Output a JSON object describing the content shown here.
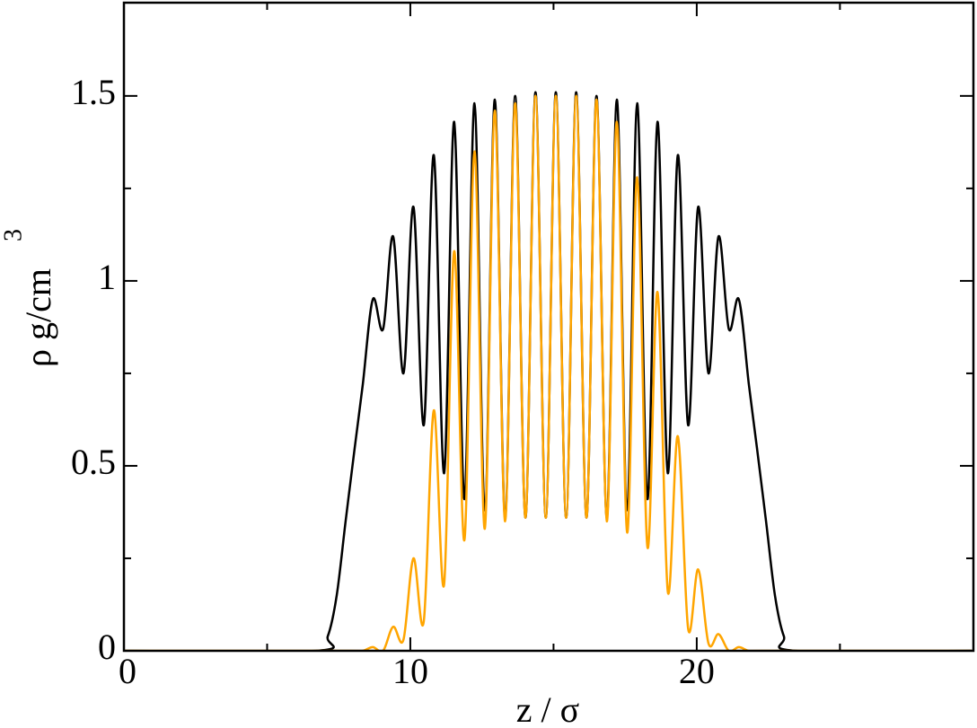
{
  "chart_data": {
    "type": "line",
    "xlabel": "z / σ",
    "ylabel": "ρ g/cm",
    "ylabel_superscript": "3",
    "xlim": [
      0,
      29.66
    ],
    "ylim": [
      0,
      1.752
    ],
    "xticks": [
      0,
      10,
      20
    ],
    "x_minor_ticks": [
      5,
      15,
      25
    ],
    "yticks": [
      0,
      0.5,
      1,
      1.5
    ],
    "y_minor_ticks": [
      0.25,
      0.75,
      1.25
    ],
    "series": [
      {
        "color": "#000000",
        "x": [
          0,
          6.7,
          7.12,
          7.43,
          7.74,
          8.06,
          8.34,
          8.69,
          9.05,
          9.4,
          9.76,
          10.11,
          10.47,
          10.82,
          11.18,
          11.53,
          11.89,
          12.24,
          12.6,
          12.95,
          13.31,
          13.66,
          14.02,
          14.37,
          14.73,
          15.08,
          15.44,
          15.79,
          16.15,
          16.5,
          16.86,
          17.21,
          17.57,
          17.92,
          18.28,
          18.63,
          18.99,
          19.34,
          19.7,
          20.05,
          20.41,
          20.76,
          21.12,
          21.47,
          21.82,
          22.1,
          22.42,
          22.73,
          23.04,
          23.46,
          29.6
        ],
        "values": [
          0,
          0,
          0.04,
          0.15,
          0.35,
          0.55,
          0.72,
          0.95,
          0.87,
          1.12,
          0.75,
          1.2,
          0.61,
          1.34,
          0.48,
          1.43,
          0.41,
          1.48,
          0.38,
          1.49,
          0.36,
          1.5,
          0.36,
          1.51,
          0.36,
          1.51,
          0.36,
          1.51,
          0.36,
          1.5,
          0.36,
          1.49,
          0.38,
          1.48,
          0.41,
          1.43,
          0.48,
          1.34,
          0.61,
          1.2,
          0.75,
          1.12,
          0.87,
          0.95,
          0.72,
          0.55,
          0.35,
          0.15,
          0.04,
          0,
          0
        ]
      },
      {
        "color": "#ffa500",
        "x": [
          0,
          7.9,
          8.34,
          8.69,
          9.05,
          9.4,
          9.76,
          10.11,
          10.47,
          10.82,
          11.18,
          11.53,
          11.89,
          12.24,
          12.6,
          12.95,
          13.31,
          13.66,
          14.02,
          14.37,
          14.73,
          15.08,
          15.44,
          15.79,
          16.15,
          16.5,
          16.86,
          17.21,
          17.57,
          17.92,
          18.28,
          18.63,
          18.99,
          19.34,
          19.7,
          20.05,
          20.41,
          20.76,
          21.12,
          21.47,
          21.82,
          22.3,
          29.6
        ],
        "values": [
          0,
          0,
          0,
          0.01,
          0,
          0.065,
          0.03,
          0.25,
          0.08,
          0.65,
          0.18,
          1.08,
          0.3,
          1.35,
          0.33,
          1.46,
          0.35,
          1.48,
          0.36,
          1.5,
          0.36,
          1.5,
          0.36,
          1.5,
          0.36,
          1.49,
          0.35,
          1.43,
          0.32,
          1.28,
          0.28,
          0.97,
          0.16,
          0.58,
          0.06,
          0.22,
          0.02,
          0.045,
          0,
          0.01,
          0,
          0,
          0
        ]
      }
    ]
  }
}
